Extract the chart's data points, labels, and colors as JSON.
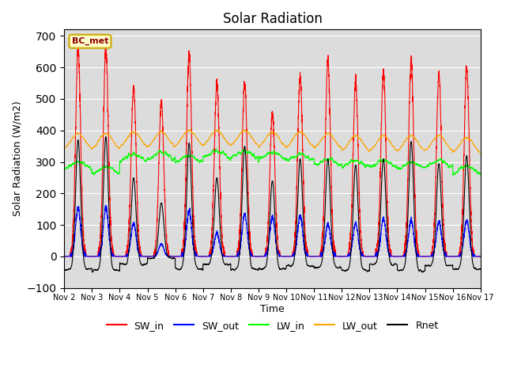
{
  "title": "Solar Radiation",
  "ylabel": "Solar Radiation (W/m2)",
  "xlabel": "Time",
  "ylim": [
    -100,
    720
  ],
  "yticks": [
    -100,
    0,
    100,
    200,
    300,
    400,
    500,
    600,
    700
  ],
  "site_label": "BC_met",
  "legend_entries": [
    "SW_in",
    "SW_out",
    "LW_in",
    "LW_out",
    "Rnet"
  ],
  "line_colors": [
    "red",
    "blue",
    "lime",
    "orange",
    "black"
  ],
  "background_color": "#dcdcdc",
  "n_days": 15,
  "points_per_day": 288,
  "sw_in_peaks": [
    660,
    660,
    535,
    490,
    640,
    550,
    555,
    455,
    570,
    625,
    555,
    585,
    620,
    575,
    600
  ],
  "sw_out_peaks": [
    155,
    155,
    105,
    40,
    145,
    75,
    135,
    125,
    130,
    105,
    105,
    120,
    115,
    110,
    115
  ],
  "lw_in_base": [
    275,
    260,
    300,
    305,
    295,
    310,
    310,
    305,
    300,
    285,
    280,
    280,
    275,
    280,
    260
  ],
  "lw_out_base": [
    335,
    335,
    340,
    340,
    345,
    345,
    345,
    340,
    340,
    335,
    328,
    328,
    328,
    328,
    322
  ],
  "rnet_night": [
    -40,
    -45,
    -25,
    -5,
    -40,
    -25,
    -40,
    -40,
    -30,
    -35,
    -45,
    -25,
    -45,
    -30,
    -40
  ],
  "rnet_peak": [
    370,
    380,
    250,
    170,
    360,
    250,
    350,
    240,
    310,
    310,
    290,
    310,
    365,
    295,
    320
  ],
  "sigma_sw": 0.09,
  "sigma_lw": 0.25
}
